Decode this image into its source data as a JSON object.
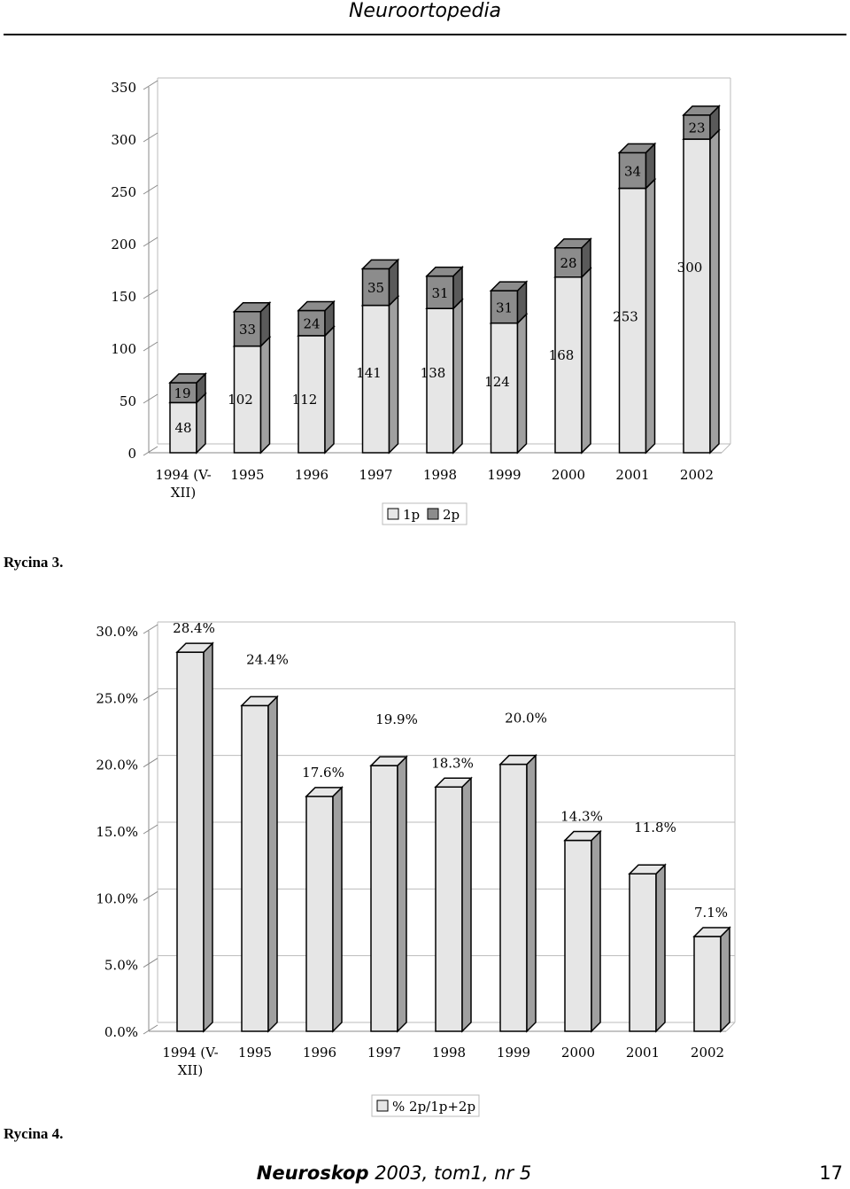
{
  "header": {
    "title": "Neuroortopedia"
  },
  "figures": [
    {
      "caption": "Rycina 3."
    },
    {
      "caption": "Rycina 4."
    }
  ],
  "footer": {
    "journal": "Neuroskop",
    "issue": " 2003, tom1, nr 5",
    "page": "17"
  },
  "chart_data": [
    {
      "type": "bar",
      "stacked": true,
      "categories": [
        "1994 (V-XII)",
        "1995",
        "1996",
        "1997",
        "1998",
        "1999",
        "2000",
        "2001",
        "2002"
      ],
      "series": [
        {
          "name": "1p",
          "values": [
            48,
            102,
            112,
            141,
            138,
            124,
            168,
            253,
            300
          ],
          "color": "#e6e6e6"
        },
        {
          "name": "2p",
          "values": [
            19,
            33,
            24,
            35,
            31,
            31,
            28,
            34,
            23
          ],
          "color": "#8c8c8c"
        }
      ],
      "ylim": [
        0,
        350
      ],
      "yticks": [
        "0",
        "50",
        "100",
        "150",
        "200",
        "250",
        "300",
        "350"
      ],
      "grid": false,
      "legend": "bottom"
    },
    {
      "type": "bar",
      "categories": [
        "1994 (V-XII)",
        "1995",
        "1996",
        "1997",
        "1998",
        "1999",
        "2000",
        "2001",
        "2002"
      ],
      "series": [
        {
          "name": "% 2p/1p+2p",
          "values": [
            28.4,
            24.4,
            17.6,
            19.9,
            18.3,
            20.0,
            14.3,
            11.8,
            7.1
          ],
          "color": "#e6e6e6"
        }
      ],
      "labels": [
        "28.4%",
        "24.4%",
        "17.6%",
        "19.9%",
        "18.3%",
        "20.0%",
        "14.3%",
        "11.8%",
        "7.1%"
      ],
      "ylim": [
        0,
        30
      ],
      "yticks": [
        "0.0%",
        "5.0%",
        "10.0%",
        "15.0%",
        "20.0%",
        "25.0%",
        "30.0%"
      ],
      "grid": true,
      "legend": "bottom"
    }
  ]
}
